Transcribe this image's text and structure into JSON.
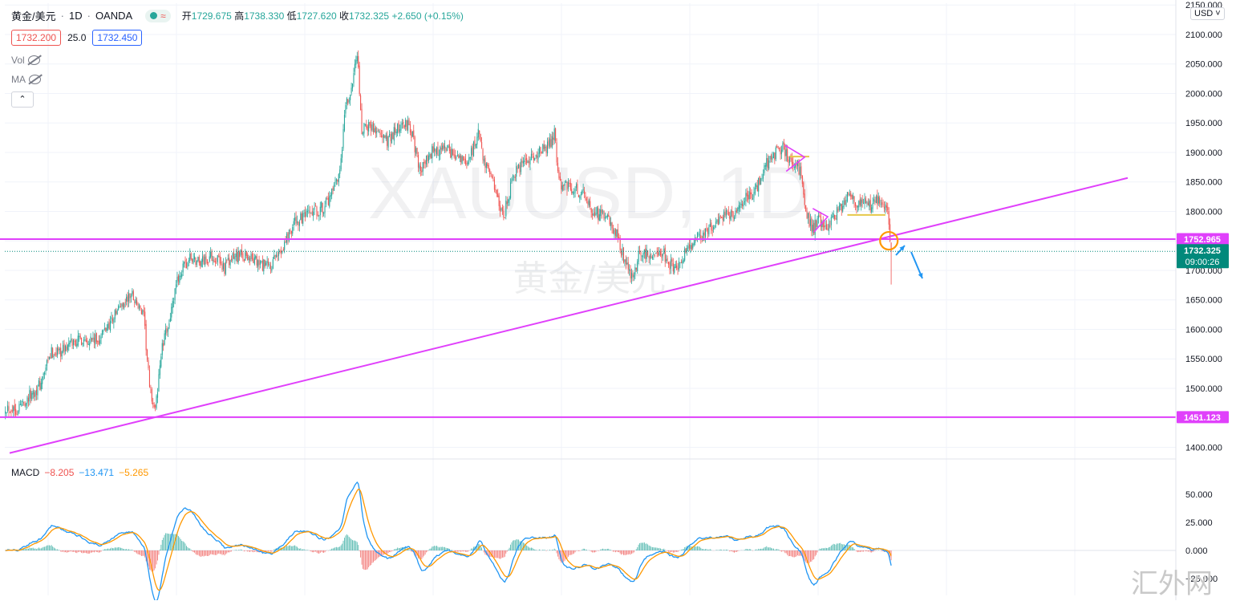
{
  "header": {
    "symbol": "黄金/美元",
    "interval": "1D",
    "exchange": "OANDA",
    "open_label": "开",
    "open": "1729.675",
    "high_label": "高",
    "high": "1738.330",
    "low_label": "低",
    "low": "1727.620",
    "close_label": "收",
    "close": "1732.325",
    "change": "+2.650",
    "change_pct": "(+0.15%)",
    "sell_price": "1732.200",
    "spread": "25.0",
    "buy_price": "1732.450",
    "currency": "USD"
  },
  "indicators": {
    "vol_label": "Vol",
    "ma_label": "MA"
  },
  "macd": {
    "label": "MACD",
    "hist": "−8.205",
    "macd": "−13.471",
    "signal": "−5.265"
  },
  "watermark": {
    "symbol": "XAUUSD, 1D",
    "name": "黄金/美元"
  },
  "corner_mark": "汇外网",
  "price_labels": {
    "upper_line": "1752.965",
    "lower_line": "1451.123",
    "current": "1732.325",
    "countdown": "09:00:26"
  },
  "colors": {
    "up": "#26a69a",
    "down": "#ef5350",
    "trendline": "#e040fb",
    "macd_line": "#2196f3",
    "signal_line": "#ff9800",
    "circle": "#ff9800",
    "arrow": "#2196f3",
    "ticker_label": "#00897b"
  },
  "chart_data": {
    "type": "candlestick",
    "y_axis_ticks": [
      "2150.000",
      "2100.000",
      "2050.000",
      "2000.000",
      "1950.000",
      "1900.000",
      "1850.000",
      "1800.000",
      "1750.000",
      "1700.000",
      "1650.000",
      "1600.000",
      "1550.000",
      "1500.000",
      "1450.000",
      "1400.000"
    ],
    "ylim": [
      1383,
      2153
    ],
    "macd_ticks": [
      "50.000",
      "25.000",
      "0.000",
      "−25.000"
    ],
    "macd_ylim": [
      -40,
      80
    ],
    "anchors": [
      [
        0,
        1470
      ],
      [
        10,
        1465
      ],
      [
        20,
        1485
      ],
      [
        30,
        1505
      ],
      [
        40,
        1560
      ],
      [
        50,
        1565
      ],
      [
        60,
        1580
      ],
      [
        70,
        1585
      ],
      [
        80,
        1580
      ],
      [
        90,
        1610
      ],
      [
        100,
        1640
      ],
      [
        110,
        1660
      ],
      [
        120,
        1620
      ],
      [
        125,
        1500
      ],
      [
        130,
        1460
      ],
      [
        135,
        1560
      ],
      [
        140,
        1600
      ],
      [
        145,
        1640
      ],
      [
        150,
        1690
      ],
      [
        160,
        1720
      ],
      [
        170,
        1715
      ],
      [
        180,
        1725
      ],
      [
        190,
        1705
      ],
      [
        200,
        1725
      ],
      [
        210,
        1725
      ],
      [
        220,
        1710
      ],
      [
        230,
        1705
      ],
      [
        240,
        1740
      ],
      [
        250,
        1780
      ],
      [
        260,
        1790
      ],
      [
        270,
        1800
      ],
      [
        280,
        1815
      ],
      [
        290,
        1860
      ],
      [
        295,
        1980
      ],
      [
        300,
        2000
      ],
      [
        303,
        2060
      ],
      [
        306,
        2050
      ],
      [
        309,
        1920
      ],
      [
        312,
        1950
      ],
      [
        320,
        1940
      ],
      [
        330,
        1920
      ],
      [
        340,
        1940
      ],
      [
        350,
        1950
      ],
      [
        356,
        1900
      ],
      [
        360,
        1870
      ],
      [
        370,
        1900
      ],
      [
        380,
        1905
      ],
      [
        390,
        1895
      ],
      [
        400,
        1880
      ],
      [
        410,
        1930
      ],
      [
        416,
        1880
      ],
      [
        420,
        1870
      ],
      [
        428,
        1810
      ],
      [
        432,
        1790
      ],
      [
        440,
        1860
      ],
      [
        450,
        1880
      ],
      [
        460,
        1895
      ],
      [
        470,
        1910
      ],
      [
        476,
        1930
      ],
      [
        480,
        1850
      ],
      [
        490,
        1840
      ],
      [
        500,
        1830
      ],
      [
        510,
        1800
      ],
      [
        520,
        1790
      ],
      [
        530,
        1765
      ],
      [
        536,
        1720
      ],
      [
        540,
        1700
      ],
      [
        545,
        1690
      ],
      [
        550,
        1730
      ],
      [
        560,
        1725
      ],
      [
        570,
        1730
      ],
      [
        580,
        1700
      ],
      [
        590,
        1730
      ],
      [
        600,
        1755
      ],
      [
        610,
        1770
      ],
      [
        620,
        1790
      ],
      [
        630,
        1795
      ],
      [
        640,
        1820
      ],
      [
        650,
        1835
      ],
      [
        660,
        1880
      ],
      [
        670,
        1905
      ],
      [
        675,
        1905
      ],
      [
        680,
        1890
      ],
      [
        685,
        1885
      ],
      [
        690,
        1860
      ],
      [
        695,
        1790
      ],
      [
        700,
        1770
      ],
      [
        705,
        1785
      ],
      [
        710,
        1765
      ],
      [
        720,
        1795
      ],
      [
        730,
        1825
      ],
      [
        740,
        1815
      ],
      [
        750,
        1810
      ],
      [
        760,
        1820
      ],
      [
        765,
        1800
      ],
      [
        768,
        1732
      ]
    ],
    "annotations": [
      {
        "type": "horizontal_line",
        "price": 1752.965
      },
      {
        "type": "horizontal_line",
        "price": 1451.123
      },
      {
        "type": "trendline"
      },
      {
        "type": "circle"
      },
      {
        "type": "arrows"
      }
    ]
  }
}
